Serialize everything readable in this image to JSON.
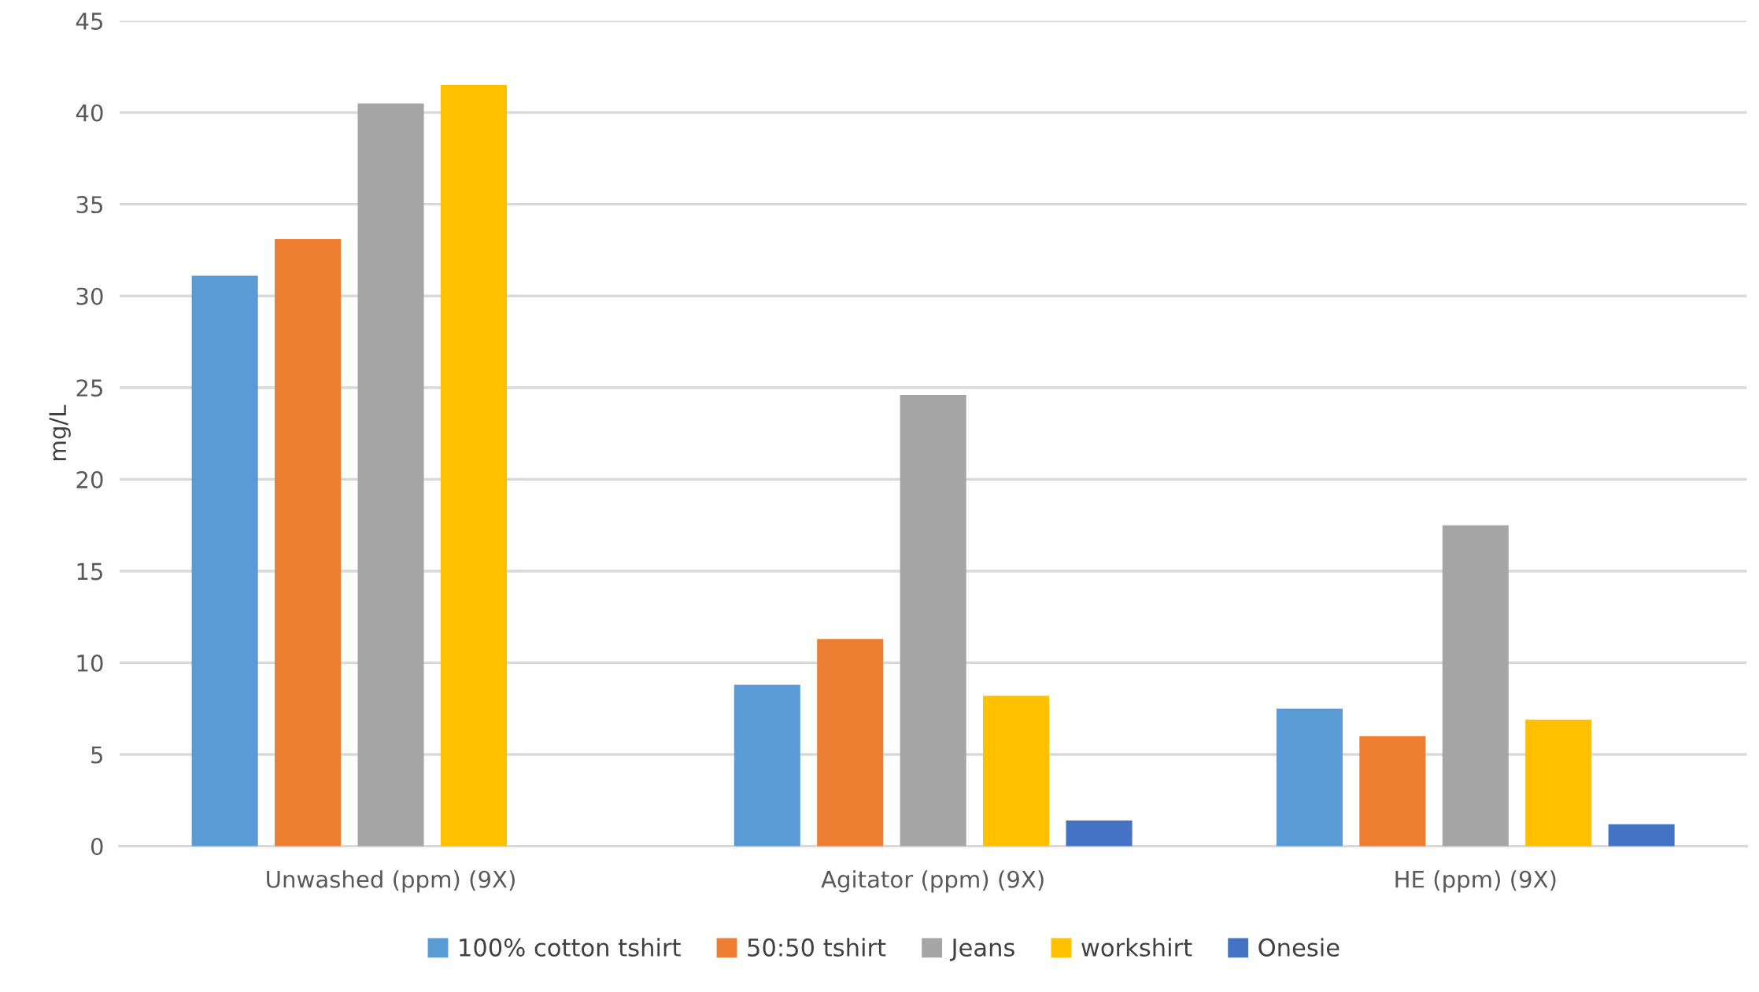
{
  "chart_data": {
    "type": "bar",
    "ylabel": "mg/L",
    "categories": [
      "Unwashed (ppm) (9X)",
      "Agitator (ppm) (9X)",
      "HE (ppm) (9X)"
    ],
    "series": [
      {
        "name": "100% cotton tshirt",
        "color": "#5b9bd5",
        "values": [
          31.1,
          8.8,
          7.5
        ]
      },
      {
        "name": "50:50 tshirt",
        "color": "#ed7d31",
        "values": [
          33.1,
          11.3,
          6.0
        ]
      },
      {
        "name": "Jeans",
        "color": "#a5a5a5",
        "values": [
          40.5,
          24.6,
          17.5
        ]
      },
      {
        "name": "workshirt",
        "color": "#ffc000",
        "values": [
          41.5,
          8.2,
          6.9
        ]
      },
      {
        "name": "Onesie",
        "color": "#4472c4",
        "values": [
          null,
          1.4,
          1.2
        ]
      }
    ],
    "ylim": [
      0,
      45
    ],
    "yticks": [
      0,
      5,
      10,
      15,
      20,
      25,
      30,
      35,
      40,
      45
    ],
    "grid": "y",
    "legend": "bottom"
  }
}
